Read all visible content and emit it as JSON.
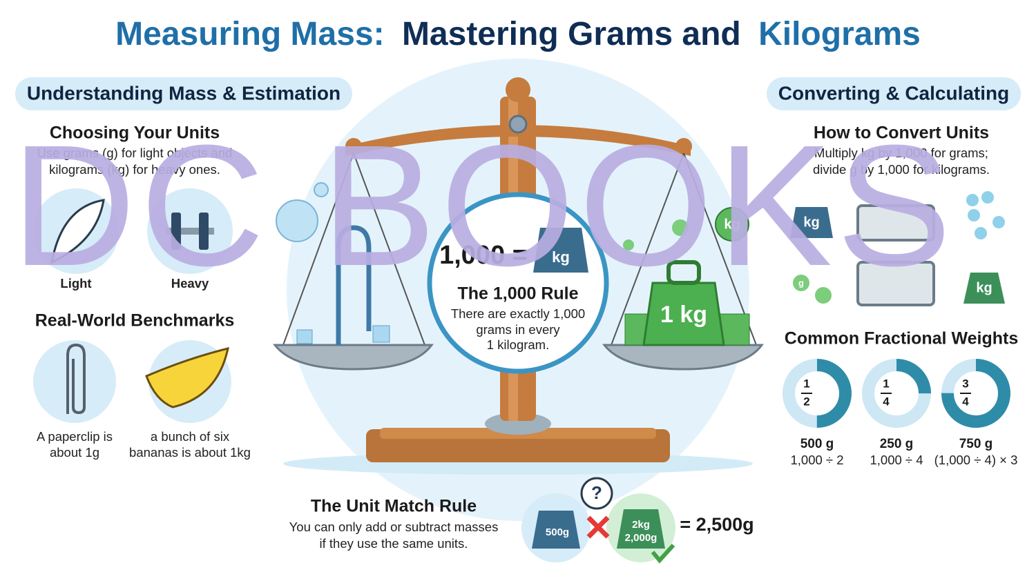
{
  "title": {
    "part1": "Measuring Mass:",
    "part2": "Mastering Grams and",
    "part3": "Kilograms"
  },
  "left_panel": {
    "heading": "Understanding Mass & Estimation",
    "choosing_units": {
      "title": "Choosing Your Units",
      "lines": [
        "Use grams (g) for light objects and",
        "kilograms (kg) for heavy ones."
      ],
      "icons": [
        "Light",
        "Heavy"
      ]
    },
    "benchmarks": {
      "title": "Real-World Benchmarks",
      "items": [
        {
          "lines": [
            "A paperclip is",
            "about 1g"
          ]
        },
        {
          "lines": [
            "a bunch of six",
            "bananas is about 1kg"
          ]
        }
      ]
    }
  },
  "center": {
    "equation_left": "1,000 =",
    "weight_label": "kg",
    "rule_title": "The 1,000 Rule",
    "rule_lines": [
      "There are exactly 1,000",
      "grams in every",
      "1 kilogram."
    ],
    "big_weight": "1 kg",
    "pan_weight": "kg"
  },
  "right_panel": {
    "heading": "Converting & Calculating",
    "convert": {
      "title": "How to Convert Units",
      "lines": [
        "Multiply kg by 1,000 for grams;",
        "divide g by 1,000 for kilograms."
      ],
      "icon_labels": [
        "kg",
        "g",
        "kg"
      ]
    },
    "fractions_title": "Common Fractional Weights",
    "fractions": [
      {
        "numerator": 1,
        "denominator": 2,
        "grams": "500 g",
        "calc": "1,000 ÷ 2"
      },
      {
        "numerator": 1,
        "denominator": 4,
        "grams": "250 g",
        "calc": "1,000 ÷ 4"
      },
      {
        "numerator": 3,
        "denominator": 4,
        "grams": "750 g",
        "calc": "(1,000 ÷ 4) × 3"
      }
    ]
  },
  "unit_match": {
    "title": "The Unit Match Rule",
    "lines": [
      "You can only add or subtract masses",
      "if they use the same units."
    ],
    "question": "?",
    "weight_g": "500g",
    "weight_kg": [
      "2kg",
      "2,000g"
    ],
    "result": "= 2,500g"
  },
  "watermark": "DC BOOKS"
}
